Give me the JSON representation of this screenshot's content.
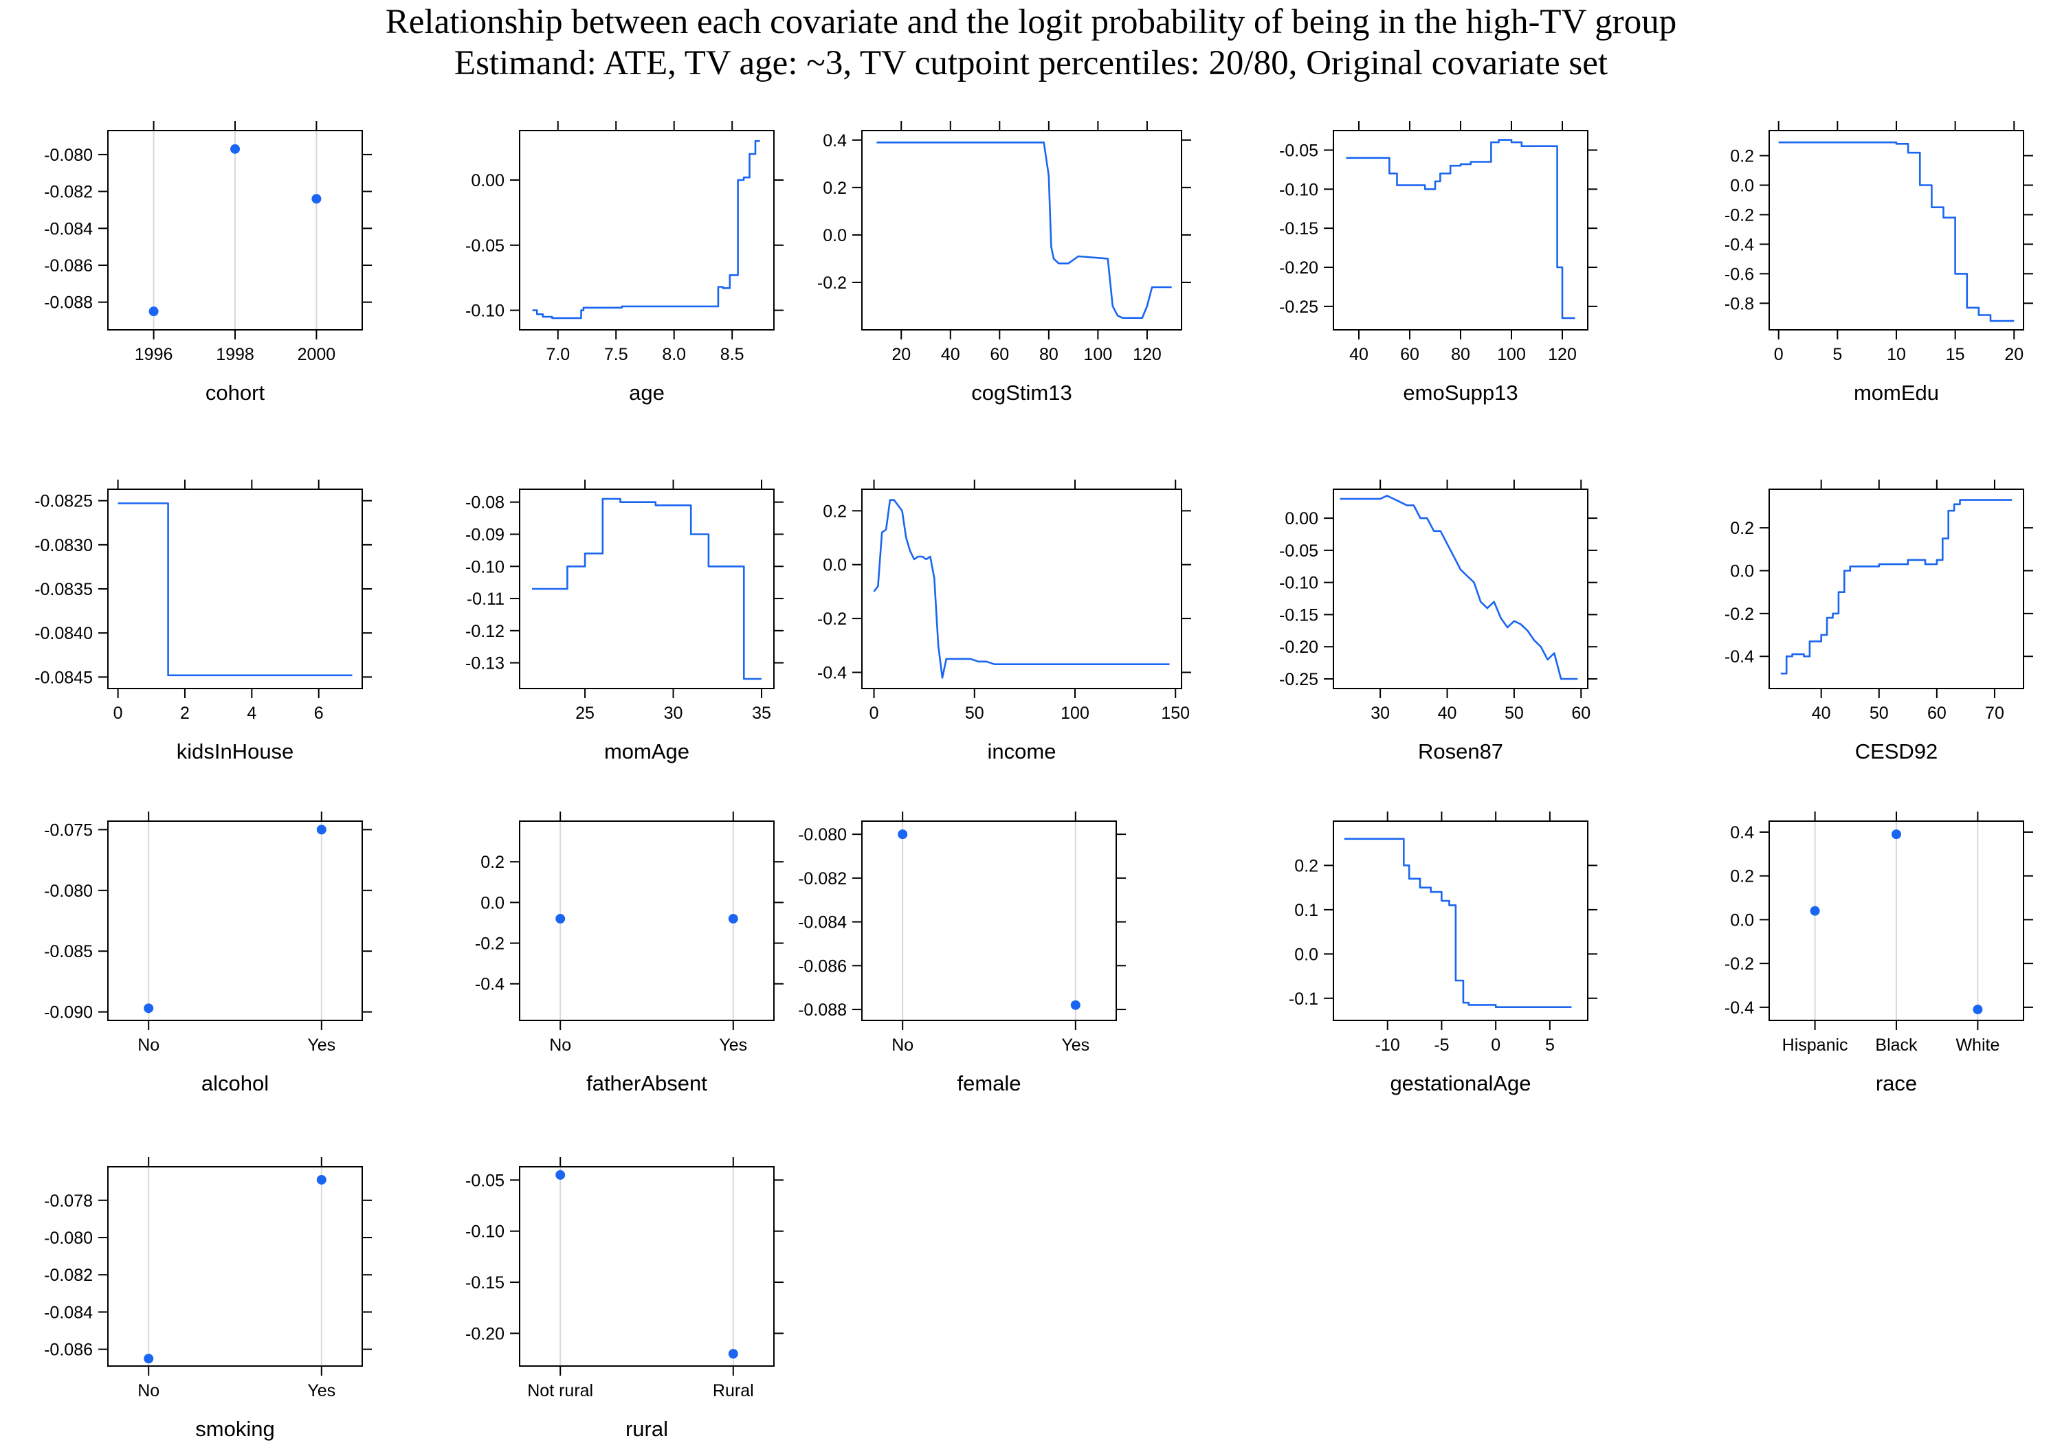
{
  "title": "Relationship between each covariate and the logit probability of being in the high-TV group",
  "subtitle": "Estimand: ATE, TV age: ~3, TV cutpoint percentiles: 20/80, Original covariate set",
  "colors": {
    "series": "#1a66f2",
    "gridline": "#d9d9d9",
    "axis": "#000000"
  },
  "chart_data": [
    {
      "type": "scatter",
      "xlabel": "cohort",
      "categorical": true,
      "categories": [
        "1996",
        "1998",
        "2000"
      ],
      "values": [
        -0.0885,
        -0.0797,
        -0.0824
      ],
      "xticks": [
        "1996",
        "1998",
        "2000"
      ],
      "ylim": [
        -0.0895,
        -0.0787
      ],
      "yticks": [
        -0.088,
        -0.086,
        -0.084,
        -0.082,
        -0.08
      ],
      "yticklabels": [
        "-0.088",
        "-0.086",
        "-0.084",
        "-0.082",
        "-0.080"
      ]
    },
    {
      "type": "line",
      "xlabel": "age",
      "x": [
        6.78,
        6.82,
        6.82,
        6.87,
        6.87,
        6.95,
        6.95,
        7.2,
        7.2,
        7.22,
        7.22,
        7.55,
        7.55,
        8.38,
        8.38,
        8.42,
        8.42,
        8.48,
        8.48,
        8.55,
        8.55,
        8.6,
        8.6,
        8.65,
        8.65,
        8.7,
        8.7,
        8.74
      ],
      "y": [
        -0.1,
        -0.1,
        -0.103,
        -0.103,
        -0.105,
        -0.105,
        -0.106,
        -0.106,
        -0.1,
        -0.1,
        -0.098,
        -0.098,
        -0.097,
        -0.097,
        -0.082,
        -0.082,
        -0.083,
        -0.083,
        -0.073,
        -0.073,
        0.0,
        0.0,
        0.002,
        0.002,
        0.02,
        0.02,
        0.03,
        0.03
      ],
      "xlim": [
        6.67,
        8.86
      ],
      "ylim": [
        -0.115,
        0.038
      ],
      "xticks": [
        7.0,
        7.5,
        8.0,
        8.5
      ],
      "xticklabels": [
        "7.0",
        "7.5",
        "8.0",
        "8.5"
      ],
      "yticks": [
        -0.1,
        -0.05,
        0.0
      ],
      "yticklabels": [
        "-0.10",
        "-0.05",
        "0.00"
      ]
    },
    {
      "type": "line",
      "xlabel": "cogStim13",
      "x": [
        10,
        78,
        80,
        81,
        82,
        84,
        88,
        92,
        92,
        104,
        106,
        108,
        110,
        118,
        120,
        122,
        130
      ],
      "y": [
        0.39,
        0.39,
        0.25,
        -0.05,
        -0.1,
        -0.12,
        -0.12,
        -0.09,
        -0.09,
        -0.1,
        -0.3,
        -0.34,
        -0.35,
        -0.35,
        -0.3,
        -0.22,
        -0.22
      ],
      "xlim": [
        4,
        134
      ],
      "ylim": [
        -0.4,
        0.44
      ],
      "xticks": [
        20,
        40,
        60,
        80,
        100,
        120
      ],
      "xticklabels": [
        "20",
        "40",
        "60",
        "80",
        "100",
        "120"
      ],
      "yticks": [
        -0.2,
        0.0,
        0.2,
        0.4
      ],
      "yticklabels": [
        "-0.2",
        "0.0",
        "0.2",
        "0.4"
      ]
    },
    {
      "type": "line",
      "xlabel": "emoSupp13",
      "x": [
        35,
        52,
        52,
        55,
        55,
        66,
        66,
        70,
        70,
        72,
        72,
        76,
        76,
        80,
        80,
        84,
        84,
        92,
        92,
        95,
        95,
        100,
        100,
        104,
        104,
        118,
        118,
        120,
        120,
        125
      ],
      "y": [
        -0.06,
        -0.06,
        -0.08,
        -0.08,
        -0.095,
        -0.095,
        -0.1,
        -0.1,
        -0.09,
        -0.09,
        -0.08,
        -0.08,
        -0.07,
        -0.07,
        -0.068,
        -0.068,
        -0.065,
        -0.065,
        -0.04,
        -0.04,
        -0.037,
        -0.037,
        -0.04,
        -0.04,
        -0.045,
        -0.045,
        -0.2,
        -0.2,
        -0.265,
        -0.265
      ],
      "xlim": [
        30,
        130
      ],
      "ylim": [
        -0.28,
        -0.025
      ],
      "xticks": [
        40,
        60,
        80,
        100,
        120
      ],
      "xticklabels": [
        "40",
        "60",
        "80",
        "100",
        "120"
      ],
      "yticks": [
        -0.25,
        -0.2,
        -0.15,
        -0.1,
        -0.05
      ],
      "yticklabels": [
        "-0.25",
        "-0.20",
        "-0.15",
        "-0.10",
        "-0.05"
      ]
    },
    {
      "type": "line",
      "xlabel": "momEdu",
      "x": [
        0,
        10,
        10,
        11,
        11,
        12,
        12,
        13,
        13,
        14,
        14,
        15,
        15,
        16,
        16,
        17,
        17,
        18,
        18,
        20
      ],
      "y": [
        0.29,
        0.29,
        0.28,
        0.28,
        0.22,
        0.22,
        0.0,
        0.0,
        -0.15,
        -0.15,
        -0.22,
        -0.22,
        -0.6,
        -0.6,
        -0.83,
        -0.83,
        -0.88,
        -0.88,
        -0.92,
        -0.92
      ],
      "xlim": [
        -0.8,
        20.8
      ],
      "ylim": [
        -0.98,
        0.37
      ],
      "xticks": [
        0,
        5,
        10,
        15,
        20
      ],
      "xticklabels": [
        "0",
        "5",
        "10",
        "15",
        "20"
      ],
      "yticks": [
        -0.8,
        -0.6,
        -0.4,
        -0.2,
        0.0,
        0.2
      ],
      "yticklabels": [
        "-0.8",
        "-0.6",
        "-0.4",
        "-0.2",
        "0.0",
        "0.2"
      ]
    },
    {
      "type": "line",
      "xlabel": "kidsInHouse",
      "x": [
        0,
        1.5,
        1.5,
        7
      ],
      "y": [
        -0.08253,
        -0.08253,
        -0.08448,
        -0.08448
      ],
      "xlim": [
        -0.3,
        7.3
      ],
      "ylim": [
        -0.08463,
        -0.08237
      ],
      "xticks": [
        0,
        2,
        4,
        6
      ],
      "xticklabels": [
        "0",
        "2",
        "4",
        "6"
      ],
      "yticks": [
        -0.0845,
        -0.084,
        -0.0835,
        -0.083,
        -0.0825
      ],
      "yticklabels": [
        "-0.0845",
        "-0.0840",
        "-0.0835",
        "-0.0830",
        "-0.0825"
      ]
    },
    {
      "type": "line",
      "xlabel": "momAge",
      "x": [
        22,
        24,
        24,
        25,
        25,
        26,
        26,
        27,
        27,
        29,
        29,
        31,
        31,
        32,
        32,
        34,
        34,
        34.7,
        34.7,
        35
      ],
      "y": [
        -0.107,
        -0.107,
        -0.1,
        -0.1,
        -0.096,
        -0.096,
        -0.079,
        -0.079,
        -0.08,
        -0.08,
        -0.081,
        -0.081,
        -0.09,
        -0.09,
        -0.1,
        -0.1,
        -0.135,
        -0.135,
        -0.135,
        -0.135
      ],
      "xlim": [
        21.3,
        35.7
      ],
      "ylim": [
        -0.138,
        -0.076
      ],
      "xticks": [
        25,
        30,
        35
      ],
      "xticklabels": [
        "25",
        "30",
        "35"
      ],
      "yticks": [
        -0.13,
        -0.12,
        -0.11,
        -0.1,
        -0.09,
        -0.08
      ],
      "yticklabels": [
        "-0.13",
        "-0.12",
        "-0.11",
        "-0.10",
        "-0.09",
        "-0.08"
      ]
    },
    {
      "type": "line",
      "xlabel": "income",
      "x": [
        0,
        2,
        4,
        6,
        8,
        10,
        12,
        14,
        16,
        18,
        20,
        22,
        24,
        26,
        28,
        30,
        32,
        34,
        36,
        40,
        44,
        48,
        52,
        56,
        60,
        70,
        80,
        90,
        100,
        110,
        120,
        130,
        140,
        147
      ],
      "y": [
        -0.1,
        -0.08,
        0.12,
        0.13,
        0.24,
        0.24,
        0.22,
        0.2,
        0.1,
        0.05,
        0.02,
        0.03,
        0.03,
        0.02,
        0.03,
        -0.05,
        -0.3,
        -0.42,
        -0.35,
        -0.35,
        -0.35,
        -0.35,
        -0.36,
        -0.36,
        -0.37,
        -0.37,
        -0.37,
        -0.37,
        -0.37,
        -0.37,
        -0.37,
        -0.37,
        -0.37,
        -0.37
      ],
      "xlim": [
        -6,
        153
      ],
      "ylim": [
        -0.46,
        0.28
      ],
      "xticks": [
        0,
        50,
        100,
        150
      ],
      "xticklabels": [
        "0",
        "50",
        "100",
        "150"
      ],
      "yticks": [
        -0.4,
        -0.2,
        0.0,
        0.2
      ],
      "yticklabels": [
        "-0.4",
        "-0.2",
        "0.0",
        "0.2"
      ]
    },
    {
      "type": "line",
      "xlabel": "Rosen87",
      "x": [
        24,
        30,
        31,
        32,
        34,
        35,
        36,
        37,
        38,
        39,
        40,
        41,
        42,
        43,
        44,
        45,
        46,
        47,
        48,
        49,
        50,
        51,
        52,
        53,
        54,
        55,
        56,
        57,
        58,
        59.5
      ],
      "y": [
        0.03,
        0.03,
        0.035,
        0.03,
        0.02,
        0.02,
        0.0,
        0.0,
        -0.02,
        -0.02,
        -0.04,
        -0.06,
        -0.08,
        -0.09,
        -0.1,
        -0.13,
        -0.14,
        -0.13,
        -0.155,
        -0.17,
        -0.16,
        -0.165,
        -0.175,
        -0.19,
        -0.2,
        -0.22,
        -0.21,
        -0.25,
        -0.25,
        -0.25
      ],
      "xlim": [
        23,
        61
      ],
      "ylim": [
        -0.265,
        0.045
      ],
      "xticks": [
        30,
        40,
        50,
        60
      ],
      "xticklabels": [
        "30",
        "40",
        "50",
        "60"
      ],
      "yticks": [
        -0.25,
        -0.2,
        -0.15,
        -0.1,
        -0.05,
        0.0
      ],
      "yticklabels": [
        "-0.25",
        "-0.20",
        "-0.15",
        "-0.10",
        "-0.05",
        "0.00"
      ]
    },
    {
      "type": "line",
      "xlabel": "CESD92",
      "x": [
        33,
        34,
        34,
        35,
        35,
        37,
        37,
        38,
        38,
        40,
        40,
        41,
        41,
        42,
        42,
        43,
        43,
        44,
        44,
        45,
        45,
        50,
        50,
        55,
        55,
        58,
        58,
        60,
        60,
        61,
        61,
        62,
        62,
        63,
        63,
        64,
        64,
        73
      ],
      "y": [
        -0.48,
        -0.48,
        -0.4,
        -0.4,
        -0.39,
        -0.39,
        -0.4,
        -0.4,
        -0.33,
        -0.33,
        -0.3,
        -0.3,
        -0.22,
        -0.22,
        -0.2,
        -0.2,
        -0.1,
        -0.1,
        0.0,
        0.0,
        0.02,
        0.02,
        0.03,
        0.03,
        0.05,
        0.05,
        0.03,
        0.03,
        0.05,
        0.05,
        0.15,
        0.15,
        0.28,
        0.28,
        0.31,
        0.31,
        0.33,
        0.33
      ],
      "xlim": [
        31,
        75
      ],
      "ylim": [
        -0.55,
        0.38
      ],
      "xticks": [
        40,
        50,
        60,
        70
      ],
      "xticklabels": [
        "40",
        "50",
        "60",
        "70"
      ],
      "yticks": [
        -0.4,
        -0.2,
        0.0,
        0.2
      ],
      "yticklabels": [
        "-0.4",
        "-0.2",
        "0.0",
        "0.2"
      ]
    },
    {
      "type": "scatter",
      "xlabel": "alcohol",
      "categorical": true,
      "categories": [
        "No",
        "Yes"
      ],
      "values": [
        -0.0897,
        -0.075
      ],
      "xticks": [
        "No",
        "Yes"
      ],
      "ylim": [
        -0.0907,
        -0.0743
      ],
      "yticks": [
        -0.09,
        -0.085,
        -0.08,
        -0.075
      ],
      "yticklabels": [
        "-0.090",
        "-0.085",
        "-0.080",
        "-0.075"
      ]
    },
    {
      "type": "scatter",
      "xlabel": "fatherAbsent",
      "categorical": true,
      "categories": [
        "No",
        "Yes"
      ],
      "values": [
        -0.08,
        -0.08
      ],
      "xticks": [
        "No",
        "Yes"
      ],
      "ylim": [
        -0.58,
        0.4
      ],
      "yticks": [
        -0.4,
        -0.2,
        0.0,
        0.2
      ],
      "yticklabels": [
        "-0.4",
        "-0.2",
        "0.0",
        "0.2"
      ]
    },
    {
      "type": "scatter",
      "xlabel": "female",
      "categorical": true,
      "categories": [
        "No",
        "Yes"
      ],
      "values": [
        -0.08,
        -0.0878
      ],
      "xticks": [
        "No",
        "Yes"
      ],
      "ylim": [
        -0.0885,
        -0.0794
      ],
      "yticks": [
        -0.088,
        -0.086,
        -0.084,
        -0.082,
        -0.08
      ],
      "yticklabels": [
        "-0.088",
        "-0.086",
        "-0.084",
        "-0.082",
        "-0.080"
      ]
    },
    {
      "type": "line",
      "xlabel": "gestationalAge",
      "x": [
        -14,
        -8.5,
        -8.5,
        -8,
        -8,
        -7,
        -7,
        -6,
        -6,
        -5,
        -5,
        -4.3,
        -4.3,
        -3.7,
        -3.7,
        -3,
        -3,
        -2.5,
        -2.5,
        0,
        0,
        7
      ],
      "y": [
        0.26,
        0.26,
        0.2,
        0.2,
        0.17,
        0.17,
        0.15,
        0.15,
        0.14,
        0.14,
        0.12,
        0.12,
        0.11,
        0.11,
        -0.06,
        -0.06,
        -0.11,
        -0.11,
        -0.115,
        -0.115,
        -0.12,
        -0.12
      ],
      "xlim": [
        -15,
        8.5
      ],
      "ylim": [
        -0.15,
        0.3
      ],
      "xticks": [
        -10,
        -5,
        0,
        5
      ],
      "xticklabels": [
        "-10",
        "-5",
        "0",
        "5"
      ],
      "yticks": [
        -0.1,
        0.0,
        0.1,
        0.2
      ],
      "yticklabels": [
        "-0.1",
        "0.0",
        "0.1",
        "0.2"
      ]
    },
    {
      "type": "scatter",
      "xlabel": "race",
      "categorical": true,
      "categories": [
        "Hispanic",
        "Black",
        "White"
      ],
      "values": [
        0.04,
        0.39,
        -0.41
      ],
      "xticks": [
        "Hispanic",
        "Black",
        "White"
      ],
      "ylim": [
        -0.46,
        0.45
      ],
      "yticks": [
        -0.4,
        -0.2,
        0.0,
        0.2,
        0.4
      ],
      "yticklabels": [
        "-0.4",
        "-0.2",
        "0.0",
        "0.2",
        "0.4"
      ]
    },
    {
      "type": "scatter",
      "xlabel": "smoking",
      "categorical": true,
      "categories": [
        "No",
        "Yes"
      ],
      "values": [
        -0.0865,
        -0.0769
      ],
      "xticks": [
        "No",
        "Yes"
      ],
      "ylim": [
        -0.0869,
        -0.0762
      ],
      "yticks": [
        -0.086,
        -0.084,
        -0.082,
        -0.08,
        -0.078
      ],
      "yticklabels": [
        "-0.086",
        "-0.084",
        "-0.082",
        "-0.080",
        "-0.078"
      ]
    },
    {
      "type": "scatter",
      "xlabel": "rural",
      "categorical": true,
      "categories": [
        "Not rural",
        "Rural"
      ],
      "values": [
        -0.045,
        -0.22
      ],
      "xticks": [
        "Not rural",
        "Rural"
      ],
      "ylim": [
        -0.232,
        -0.037
      ],
      "yticks": [
        -0.2,
        -0.15,
        -0.1,
        -0.05
      ],
      "yticklabels": [
        "-0.20",
        "-0.15",
        "-0.10",
        "-0.05"
      ]
    }
  ]
}
